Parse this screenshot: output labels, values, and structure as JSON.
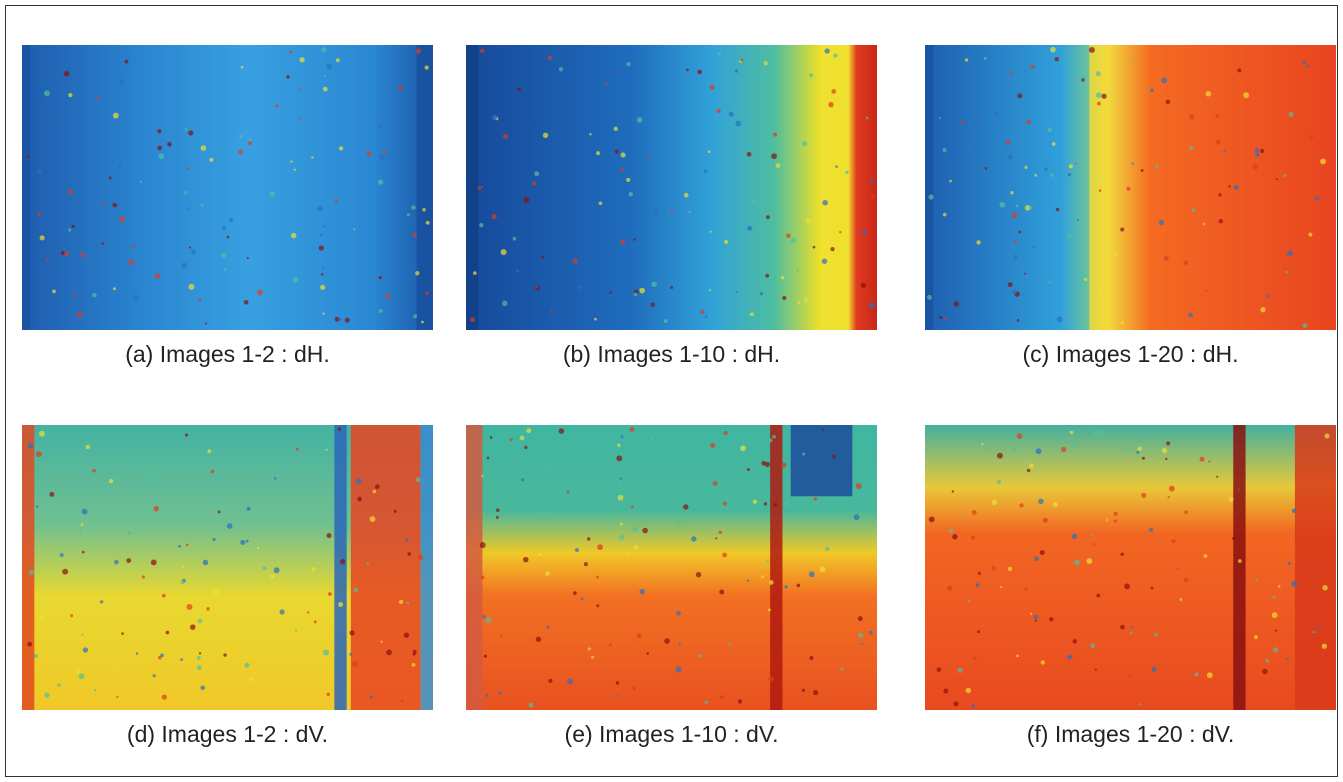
{
  "panels": [
    {
      "caption": "(a) Images 1-2 : dH."
    },
    {
      "caption": "(b) Images 1-10 : dH."
    },
    {
      "caption": "(c) Images 1-20 : dH."
    },
    {
      "caption": "(d) Images 1-2 : dV."
    },
    {
      "caption": "(e) Images 1-10 : dV."
    },
    {
      "caption": "(f) Images 1-20 : dV."
    }
  ]
}
